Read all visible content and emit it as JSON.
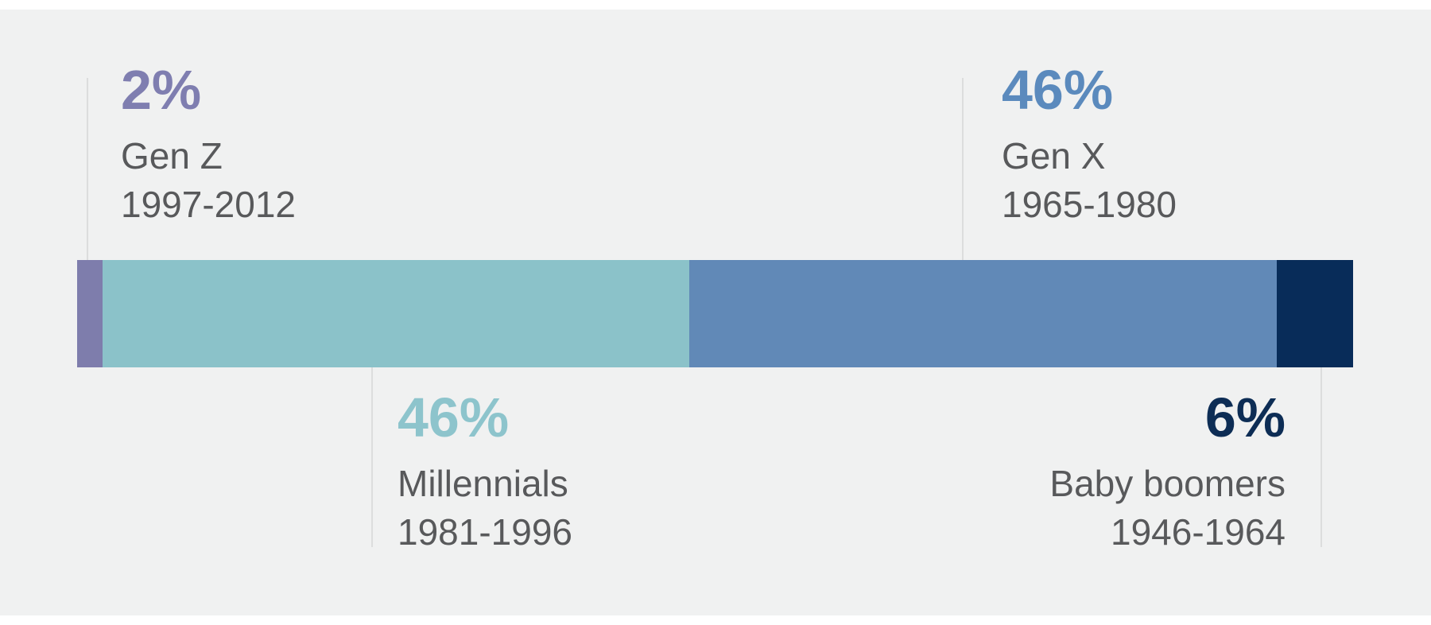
{
  "chart_data": {
    "type": "bar",
    "orientation": "horizontal-stacked",
    "title": "",
    "categories": [
      "Gen Z",
      "Millennials",
      "Gen X",
      "Baby boomers"
    ],
    "values": [
      2,
      46,
      46,
      6
    ],
    "unit": "%",
    "xlim": [
      0,
      100
    ],
    "grid": false,
    "legend": "callout-labels",
    "series": [
      {
        "name": "Gen Z",
        "years": "1997-2012",
        "value": 2,
        "color": "#7e7dac"
      },
      {
        "name": "Millennials",
        "years": "1981-1996",
        "value": 46,
        "color": "#8bc2c9"
      },
      {
        "name": "Gen X",
        "years": "1965-1980",
        "value": 46,
        "color": "#6189b7"
      },
      {
        "name": "Baby boomers",
        "years": "1946-1964",
        "value": 6,
        "color": "#082c59"
      }
    ]
  },
  "callouts": {
    "gen_z": {
      "percent": "2%",
      "name": "Gen Z",
      "years": "1997-2012",
      "percent_color": "#7f7eb0",
      "position": "above-bar"
    },
    "gen_x": {
      "percent": "46%",
      "name": "Gen X",
      "years": "1965-1980",
      "percent_color": "#5b8abd",
      "position": "above-bar"
    },
    "millennials": {
      "percent": "46%",
      "name": "Millennials",
      "years": "1981-1996",
      "percent_color": "#8dc4cc",
      "position": "below-bar"
    },
    "baby_boomers": {
      "percent": "6%",
      "name": "Baby boomers",
      "years": "1946-1964",
      "percent_color": "#0d2d55",
      "position": "below-bar"
    }
  },
  "style": {
    "background_color": "#f0f1f1",
    "page_color": "#ffffff",
    "label_text_color": "#58595b",
    "callout_line_color": "#dcdddd"
  }
}
